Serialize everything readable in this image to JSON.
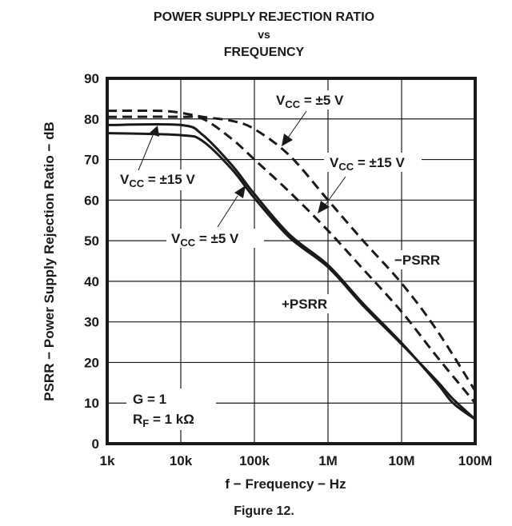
{
  "title_lines": [
    "POWER SUPPLY REJECTION RATIO",
    "vs",
    "FREQUENCY"
  ],
  "caption": "Figure 12.",
  "colors": {
    "ink": "#1a1a1a",
    "grid": "#1a1a1a",
    "background": "#ffffff"
  },
  "chart_data": {
    "type": "line",
    "title": "POWER SUPPLY REJECTION RATIO vs FREQUENCY",
    "xlabel": "f − Frequency − Hz",
    "ylabel": "PSRR − Power Supply Rejection Ratio − dB",
    "xscale": "log",
    "xlim": [
      1000,
      100000000
    ],
    "ylim": [
      0,
      90
    ],
    "xticks": [
      1000,
      10000,
      100000,
      1000000,
      10000000,
      100000000
    ],
    "xtick_labels": [
      "1k",
      "10k",
      "100k",
      "1M",
      "10M",
      "100M"
    ],
    "yticks": [
      0,
      10,
      20,
      30,
      40,
      50,
      60,
      70,
      80,
      90
    ],
    "ytick_labels": [
      "0",
      "10",
      "20",
      "30",
      "40",
      "50",
      "60",
      "70",
      "80",
      "90"
    ],
    "grid": true,
    "series": [
      {
        "name": "-PSRR, VCC = ±5 V",
        "style": "dashed",
        "x": [
          1000,
          5000,
          10000,
          20000,
          50000,
          100000,
          300000,
          1000000,
          3000000,
          10000000,
          30000000,
          100000000
        ],
        "y": [
          82,
          82,
          81.5,
          80.5,
          79.5,
          77.5,
          71,
          60,
          50,
          39.5,
          28,
          13
        ]
      },
      {
        "name": "-PSRR, VCC = ±15 V",
        "style": "dashed",
        "x": [
          1000,
          10000,
          20000,
          50000,
          100000,
          300000,
          1000000,
          3000000,
          10000000,
          30000000,
          100000000
        ],
        "y": [
          80.5,
          80.5,
          80,
          75,
          70,
          62,
          52.5,
          43,
          32.5,
          21.5,
          10
        ]
      },
      {
        "name": "+PSRR, VCC = ±15 V",
        "style": "solid",
        "x": [
          1000,
          10000,
          20000,
          50000,
          100000,
          300000,
          1000000,
          3000000,
          10000000,
          30000000,
          50000000,
          100000000
        ],
        "y": [
          78.5,
          78.5,
          76,
          68.5,
          61.5,
          51.5,
          44,
          34.5,
          24.8,
          15,
          10,
          6
        ]
      },
      {
        "name": "+PSRR, VCC = ±5 V",
        "style": "solid",
        "x": [
          1000,
          10000,
          20000,
          50000,
          100000,
          300000,
          1000000,
          3000000,
          10000000,
          30000000,
          50000000,
          100000000
        ],
        "y": [
          76.5,
          76,
          74.5,
          67.5,
          60.5,
          50.8,
          43.5,
          34,
          24.5,
          15.5,
          11,
          6
        ]
      }
    ],
    "annotations": [
      {
        "id": "vcc5-top",
        "text_main": "V",
        "text_sub": "CC",
        "text_rest": " = ±5 V",
        "points_to": "-PSRR, VCC = ±5 V"
      },
      {
        "id": "vcc15-right",
        "text_main": "V",
        "text_sub": "CC",
        "text_rest": " = ±15 V",
        "points_to": "-PSRR, VCC = ±15 V"
      },
      {
        "id": "vcc15-left",
        "text_main": "V",
        "text_sub": "CC",
        "text_rest": " = ±15 V",
        "points_to": "+PSRR, VCC = ±15 V"
      },
      {
        "id": "vcc5-bottom",
        "text_main": "V",
        "text_sub": "CC",
        "text_rest": " = ±5 V",
        "points_to": "+PSRR, VCC = ±5 V"
      },
      {
        "id": "minus-psrr",
        "text": "−PSRR"
      },
      {
        "id": "plus-psrr",
        "text": "+PSRR"
      }
    ],
    "conditions": {
      "gain": "G = 1",
      "rf_main": "R",
      "rf_sub": "F",
      "rf_rest": " = 1 kΩ"
    }
  }
}
